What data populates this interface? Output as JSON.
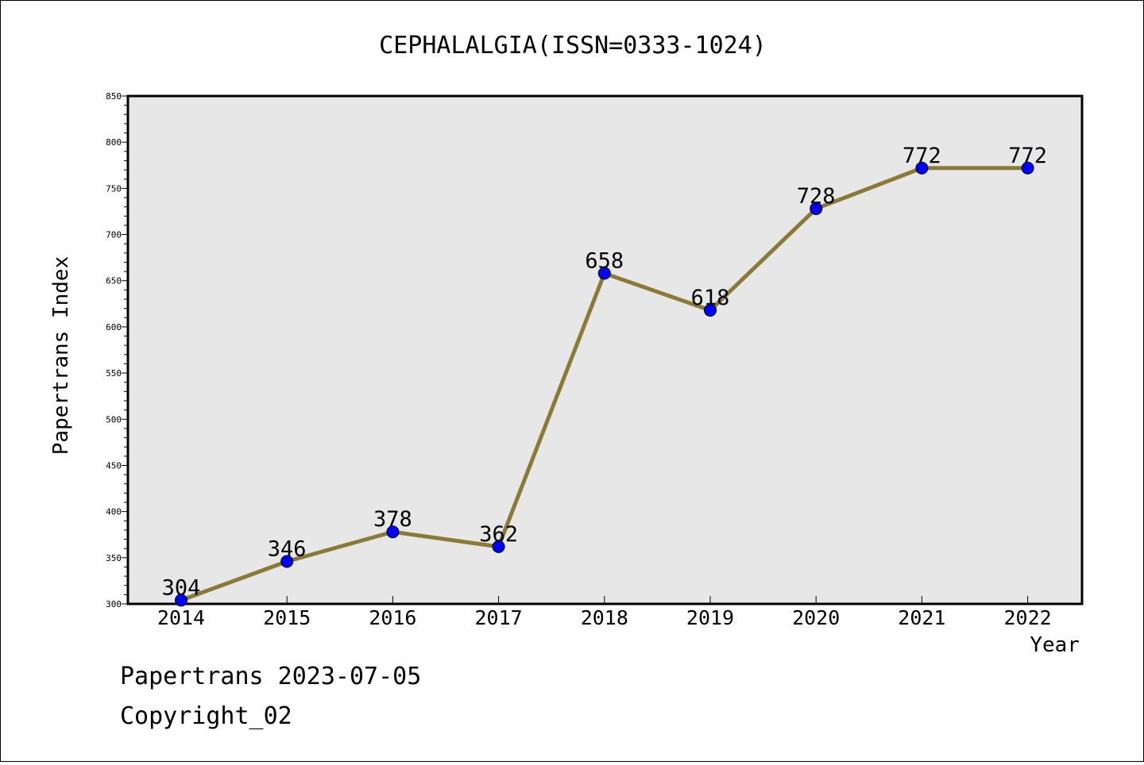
{
  "chart_data": {
    "type": "line",
    "title": "CEPHALALGIA(ISSN=0333-1024)",
    "xlabel": "Year",
    "ylabel": "Papertrans Index",
    "categories": [
      "2014",
      "2015",
      "2016",
      "2017",
      "2018",
      "2019",
      "2020",
      "2021",
      "2022"
    ],
    "series": [
      {
        "values": [
          304,
          346,
          378,
          362,
          658,
          618,
          728,
          772,
          772
        ]
      }
    ],
    "ylim": [
      300,
      850
    ],
    "yticks": [
      300,
      350,
      400,
      450,
      500,
      550,
      600,
      650,
      700,
      750,
      800,
      850
    ],
    "grid": false,
    "data_labels": true,
    "colors": {
      "line": "#8b7a35",
      "marker": "#0000ff",
      "plot_background": "#e7e7e7"
    }
  },
  "footer": {
    "line1": "Papertrans 2023-07-05",
    "line2": "Copyright_02"
  }
}
